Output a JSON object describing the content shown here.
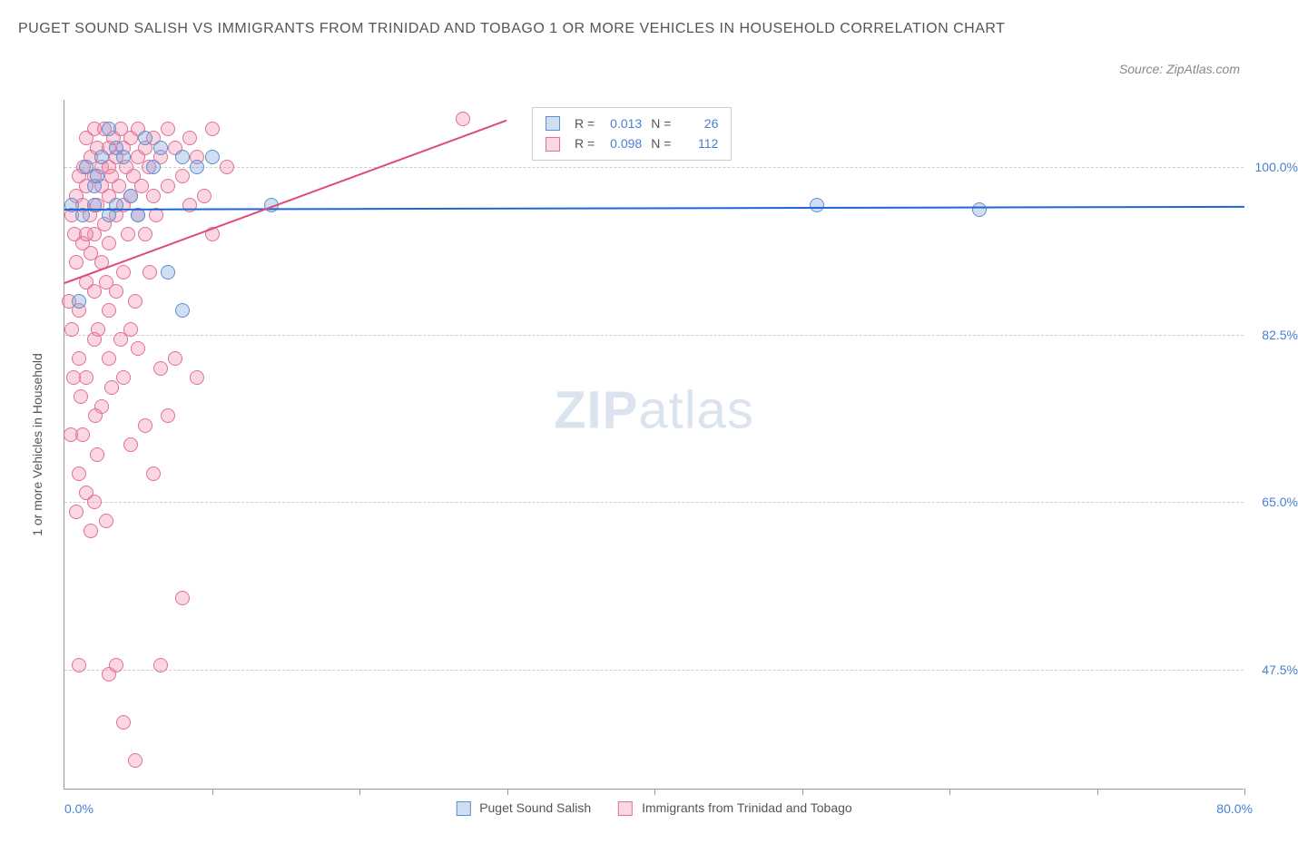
{
  "title": "PUGET SOUND SALISH VS IMMIGRANTS FROM TRINIDAD AND TOBAGO 1 OR MORE VEHICLES IN HOUSEHOLD CORRELATION CHART",
  "source": "Source: ZipAtlas.com",
  "ylabel": "1 or more Vehicles in Household",
  "watermark_bold": "ZIP",
  "watermark_light": "atlas",
  "colors": {
    "series_a_fill": "rgba(120,160,220,0.35)",
    "series_a_stroke": "#5e8fd0",
    "series_b_fill": "rgba(240,140,170,0.35)",
    "series_b_stroke": "#e36f97",
    "trend_a": "#2067d4",
    "trend_b": "#e14a7a",
    "axis_text": "#4a7fd1",
    "grid": "#cccccc",
    "title_text": "#555555"
  },
  "chart": {
    "type": "scatter",
    "xlim": [
      0,
      80
    ],
    "ylim": [
      35,
      107
    ],
    "xticks": [
      10,
      20,
      30,
      40,
      50,
      60,
      70,
      80
    ],
    "yticks": [
      47.5,
      65.0,
      82.5,
      100.0
    ],
    "ytick_labels": [
      "47.5%",
      "65.0%",
      "82.5%",
      "100.0%"
    ],
    "xaxis_min_label": "0.0%",
    "xaxis_max_label": "80.0%",
    "point_radius": 8
  },
  "series": [
    {
      "key": "a",
      "name": "Puget Sound Salish",
      "R": "0.013",
      "N": "26",
      "trend": {
        "x1": 0,
        "y1": 95.6,
        "x2": 80,
        "y2": 95.9
      },
      "points": [
        [
          0.5,
          96
        ],
        [
          1,
          86
        ],
        [
          1.2,
          95
        ],
        [
          1.5,
          100
        ],
        [
          2,
          98
        ],
        [
          2,
          96
        ],
        [
          2.5,
          101
        ],
        [
          3,
          104
        ],
        [
          3,
          95
        ],
        [
          3.5,
          102
        ],
        [
          4,
          101
        ],
        [
          4.5,
          97
        ],
        [
          5,
          95
        ],
        [
          5.5,
          103
        ],
        [
          6,
          100
        ],
        [
          6.5,
          102
        ],
        [
          7,
          89
        ],
        [
          8,
          101
        ],
        [
          8,
          85
        ],
        [
          9,
          100
        ],
        [
          10,
          101
        ],
        [
          14,
          96
        ],
        [
          51,
          96
        ],
        [
          62,
          95.5
        ],
        [
          3.5,
          96
        ],
        [
          2.2,
          99
        ]
      ]
    },
    {
      "key": "b",
      "name": "Immigrants from Trinidad and Tobago",
      "R": "0.098",
      "N": "112",
      "trend": {
        "x1": 0,
        "y1": 88,
        "x2": 30,
        "y2": 105
      },
      "points": [
        [
          0.3,
          86
        ],
        [
          0.5,
          95
        ],
        [
          0.5,
          83
        ],
        [
          0.7,
          93
        ],
        [
          0.8,
          97
        ],
        [
          0.8,
          90
        ],
        [
          1,
          99
        ],
        [
          1,
          85
        ],
        [
          1,
          80
        ],
        [
          1.2,
          96
        ],
        [
          1.2,
          92
        ],
        [
          1.3,
          100
        ],
        [
          1.5,
          103
        ],
        [
          1.5,
          98
        ],
        [
          1.5,
          88
        ],
        [
          1.5,
          78
        ],
        [
          1.7,
          95
        ],
        [
          1.8,
          101
        ],
        [
          1.8,
          91
        ],
        [
          2,
          104
        ],
        [
          2,
          99
        ],
        [
          2,
          93
        ],
        [
          2,
          87
        ],
        [
          2,
          65
        ],
        [
          2.2,
          102
        ],
        [
          2.2,
          96
        ],
        [
          2.3,
          83
        ],
        [
          2.5,
          100
        ],
        [
          2.5,
          98
        ],
        [
          2.5,
          90
        ],
        [
          2.5,
          75
        ],
        [
          2.7,
          104
        ],
        [
          2.7,
          94
        ],
        [
          2.8,
          63
        ],
        [
          3,
          102
        ],
        [
          3,
          100
        ],
        [
          3,
          97
        ],
        [
          3,
          92
        ],
        [
          3,
          85
        ],
        [
          3,
          47
        ],
        [
          3.2,
          99
        ],
        [
          3.3,
          103
        ],
        [
          3.5,
          101
        ],
        [
          3.5,
          95
        ],
        [
          3.5,
          87
        ],
        [
          3.5,
          48
        ],
        [
          3.7,
          98
        ],
        [
          3.8,
          104
        ],
        [
          4,
          102
        ],
        [
          4,
          96
        ],
        [
          4,
          89
        ],
        [
          4,
          78
        ],
        [
          4,
          42
        ],
        [
          4.2,
          100
        ],
        [
          4.3,
          93
        ],
        [
          4.5,
          103
        ],
        [
          4.5,
          97
        ],
        [
          4.5,
          71
        ],
        [
          4.7,
          99
        ],
        [
          4.8,
          38
        ],
        [
          5,
          104
        ],
        [
          5,
          101
        ],
        [
          5,
          95
        ],
        [
          5,
          81
        ],
        [
          5.2,
          98
        ],
        [
          5.5,
          102
        ],
        [
          5.5,
          93
        ],
        [
          5.5,
          73
        ],
        [
          5.7,
          100
        ],
        [
          6,
          103
        ],
        [
          6,
          97
        ],
        [
          6,
          68
        ],
        [
          6.2,
          95
        ],
        [
          6.5,
          101
        ],
        [
          6.5,
          79
        ],
        [
          6.5,
          48
        ],
        [
          7,
          104
        ],
        [
          7,
          98
        ],
        [
          7,
          74
        ],
        [
          7.5,
          102
        ],
        [
          7.5,
          80
        ],
        [
          8,
          99
        ],
        [
          8,
          55
        ],
        [
          8.5,
          103
        ],
        [
          8.5,
          96
        ],
        [
          9,
          101
        ],
        [
          9,
          78
        ],
        [
          9.5,
          97
        ],
        [
          10,
          104
        ],
        [
          10,
          93
        ],
        [
          11,
          100
        ],
        [
          1,
          68
        ],
        [
          1.2,
          72
        ],
        [
          1.5,
          66
        ],
        [
          2.2,
          70
        ],
        [
          0.8,
          64
        ],
        [
          1.8,
          62
        ],
        [
          3.2,
          77
        ],
        [
          4.5,
          83
        ],
        [
          27,
          105
        ],
        [
          1,
          48
        ],
        [
          2,
          82
        ],
        [
          3,
          80
        ],
        [
          1.5,
          93
        ],
        [
          2.8,
          88
        ],
        [
          3.8,
          82
        ],
        [
          4.8,
          86
        ],
        [
          5.8,
          89
        ],
        [
          0.6,
          78
        ],
        [
          0.4,
          72
        ],
        [
          1.1,
          76
        ],
        [
          2.1,
          74
        ]
      ]
    }
  ],
  "stats_box": {
    "r_label": "R =",
    "n_label": "N ="
  },
  "bottom_legend_label_a": "Puget Sound Salish",
  "bottom_legend_label_b": "Immigrants from Trinidad and Tobago"
}
